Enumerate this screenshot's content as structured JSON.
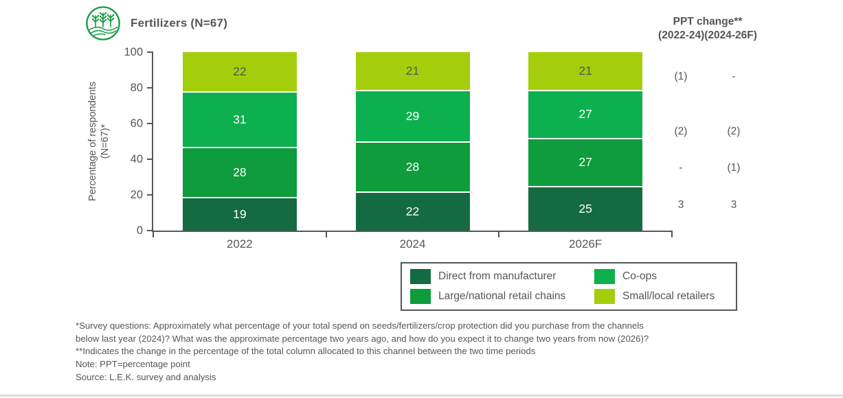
{
  "header": {
    "title": "Fertilizers (N=67)",
    "ppt_header_line1": "PPT change**",
    "ppt_header_line2": "(2022-24)(2024-26F)"
  },
  "colors": {
    "text_gray": "#53565A",
    "axis_gray": "#53565A",
    "icon_green": "#0E9C3C",
    "bottom_divider": "#DBDDDD"
  },
  "chart_data": {
    "type": "bar",
    "stacked": true,
    "title": "Fertilizers (N=67)",
    "categories": [
      "2022",
      "2024",
      "2026F"
    ],
    "ylabel_line1": "Percentage of respondents",
    "ylabel_line2": "(N=67)*",
    "ylim": [
      0,
      100
    ],
    "yticks": [
      0,
      20,
      40,
      60,
      80,
      100
    ],
    "grid": false,
    "legend_position": "bottom-right",
    "ppt_change_columns": [
      "2022-24",
      "2024-26F"
    ],
    "series": [
      {
        "name": "Direct from manufacturer",
        "color": "#156B41",
        "values": [
          19,
          22,
          25
        ],
        "ppt_change": [
          "3",
          "3"
        ]
      },
      {
        "name": "Large/national retail chains",
        "color": "#0E9C3C",
        "values": [
          28,
          28,
          27
        ],
        "ppt_change": [
          "-",
          "(1)"
        ]
      },
      {
        "name": "Co-ops",
        "color": "#0DB04F",
        "values": [
          31,
          29,
          27
        ],
        "ppt_change": [
          "(2)",
          "(2)"
        ]
      },
      {
        "name": "Small/local retailers",
        "color": "#A4CE0B",
        "values": [
          22,
          21,
          21
        ],
        "ppt_change": [
          "(1)",
          "-"
        ],
        "label_color": "#53565A"
      }
    ]
  },
  "footnotes": [
    "*Survey questions: Approximately what percentage of your total spend on seeds/fertilizers/crop protection did you purchase from the channels",
    "below last year (2024)? What was the approximate percentage two years ago, and how do you expect it to change two years from now (2026)?",
    "**Indicates the change in the percentage of the total column allocated to this channel between the two time periods",
    "Note: PPT=percentage point",
    "Source: L.E.K. survey and analysis"
  ]
}
